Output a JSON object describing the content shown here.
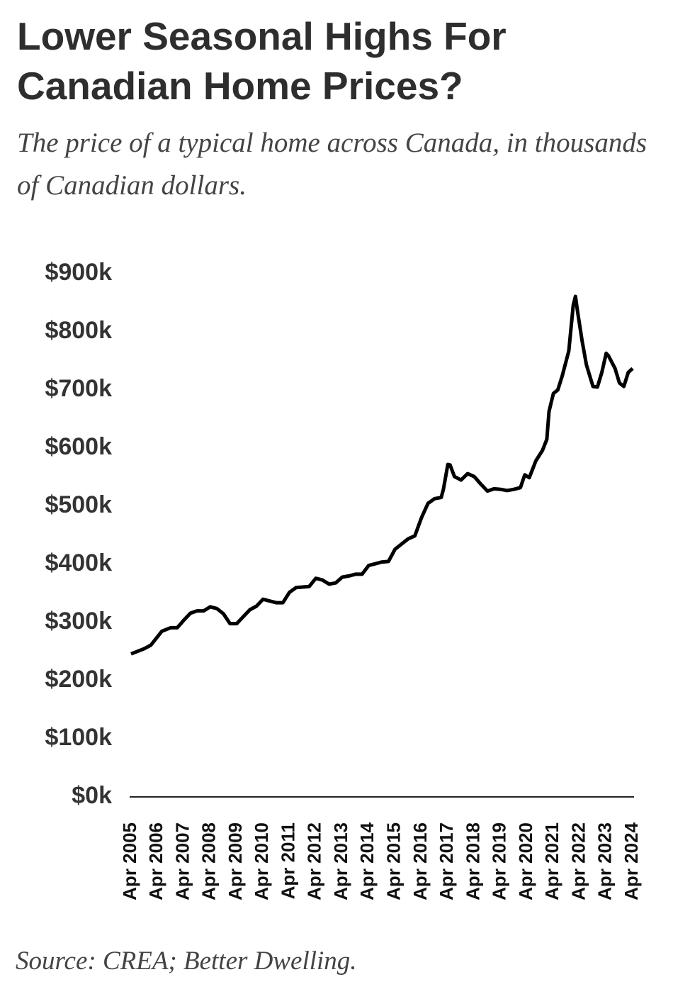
{
  "chart_data": {
    "type": "line",
    "title": "Lower Seasonal Highs For Canadian Home Prices?",
    "subtitle": "The price of a typical home across Canada, in thousands of Canadian dollars.",
    "source": "Source: CREA; Better Dwelling.",
    "x": [
      "2005-04",
      "2005-10",
      "2006-01",
      "2006-06",
      "2006-10",
      "2007-01",
      "2007-04",
      "2007-07",
      "2007-10",
      "2008-01",
      "2008-04",
      "2008-07",
      "2008-10",
      "2009-01",
      "2009-04",
      "2009-07",
      "2009-10",
      "2010-01",
      "2010-04",
      "2010-07",
      "2010-10",
      "2011-01",
      "2011-04",
      "2011-07",
      "2011-10",
      "2012-01",
      "2012-04",
      "2012-07",
      "2012-10",
      "2013-01",
      "2013-04",
      "2013-07",
      "2013-10",
      "2014-01",
      "2014-04",
      "2014-07",
      "2014-10",
      "2015-01",
      "2015-04",
      "2015-07",
      "2015-10",
      "2016-01",
      "2016-04",
      "2016-07",
      "2016-10",
      "2017-01",
      "2017-02",
      "2017-04",
      "2017-05",
      "2017-07",
      "2017-10",
      "2018-01",
      "2018-04",
      "2018-07",
      "2018-10",
      "2019-01",
      "2019-04",
      "2019-07",
      "2019-10",
      "2020-01",
      "2020-03",
      "2020-05",
      "2020-08",
      "2020-11",
      "2021-01",
      "2021-02",
      "2021-04",
      "2021-06",
      "2021-08",
      "2021-11",
      "2022-01",
      "2022-02",
      "2022-03",
      "2022-05",
      "2022-07",
      "2022-10",
      "2022-12",
      "2023-02",
      "2023-04",
      "2023-05",
      "2023-08",
      "2023-10",
      "2023-12",
      "2024-02",
      "2024-04"
    ],
    "values": [
      246,
      255,
      261,
      285,
      291,
      291,
      304,
      316,
      320,
      320,
      327,
      324,
      315,
      298,
      298,
      310,
      322,
      328,
      340,
      337,
      334,
      334,
      352,
      360,
      361,
      362,
      376,
      373,
      366,
      368,
      378,
      380,
      383,
      383,
      398,
      401,
      404,
      405,
      426,
      435,
      444,
      449,
      480,
      505,
      513,
      515,
      529,
      572,
      571,
      551,
      545,
      556,
      551,
      538,
      526,
      530,
      529,
      527,
      529,
      532,
      554,
      549,
      578,
      596,
      615,
      663,
      694,
      700,
      724,
      767,
      846,
      861,
      834,
      785,
      743,
      706,
      705,
      730,
      763,
      759,
      737,
      712,
      706,
      730,
      737
    ],
    "color": "#000000",
    "xlim": [
      "2005-04",
      "2024-04"
    ],
    "xticks": [
      {
        "value": "2005-04",
        "label": "Apr 2005"
      },
      {
        "value": "2006-04",
        "label": "Apr 2006"
      },
      {
        "value": "2007-04",
        "label": "Apr 2007"
      },
      {
        "value": "2008-04",
        "label": "Apr 2008"
      },
      {
        "value": "2009-04",
        "label": "Apr 2009"
      },
      {
        "value": "2010-04",
        "label": "Apr 2010"
      },
      {
        "value": "2011-04",
        "label": "Apr 2011"
      },
      {
        "value": "2012-04",
        "label": "Apr 2012"
      },
      {
        "value": "2013-04",
        "label": "Apr 2013"
      },
      {
        "value": "2014-04",
        "label": "Apr 2014"
      },
      {
        "value": "2015-04",
        "label": "Apr 2015"
      },
      {
        "value": "2016-04",
        "label": "Apr 2016"
      },
      {
        "value": "2017-04",
        "label": "Apr 2017"
      },
      {
        "value": "2018-04",
        "label": "Apr 2018"
      },
      {
        "value": "2019-04",
        "label": "Apr 2019"
      },
      {
        "value": "2020-04",
        "label": "Apr 2020"
      },
      {
        "value": "2021-04",
        "label": "Apr 2021"
      },
      {
        "value": "2022-04",
        "label": "Apr 2022"
      },
      {
        "value": "2023-04",
        "label": "Apr 2023"
      },
      {
        "value": "2024-04",
        "label": "Apr 2024"
      }
    ],
    "ylim": [
      0,
      900
    ],
    "yticks": [
      {
        "value": 0,
        "label": "$0k"
      },
      {
        "value": 100,
        "label": "$100k"
      },
      {
        "value": 200,
        "label": "$200k"
      },
      {
        "value": 300,
        "label": "$300k"
      },
      {
        "value": 400,
        "label": "$400k"
      },
      {
        "value": 500,
        "label": "$500k"
      },
      {
        "value": 600,
        "label": "$600k"
      },
      {
        "value": 700,
        "label": "$700k"
      },
      {
        "value": 800,
        "label": "$800k"
      },
      {
        "value": 900,
        "label": "$900k"
      }
    ],
    "grid": false
  }
}
